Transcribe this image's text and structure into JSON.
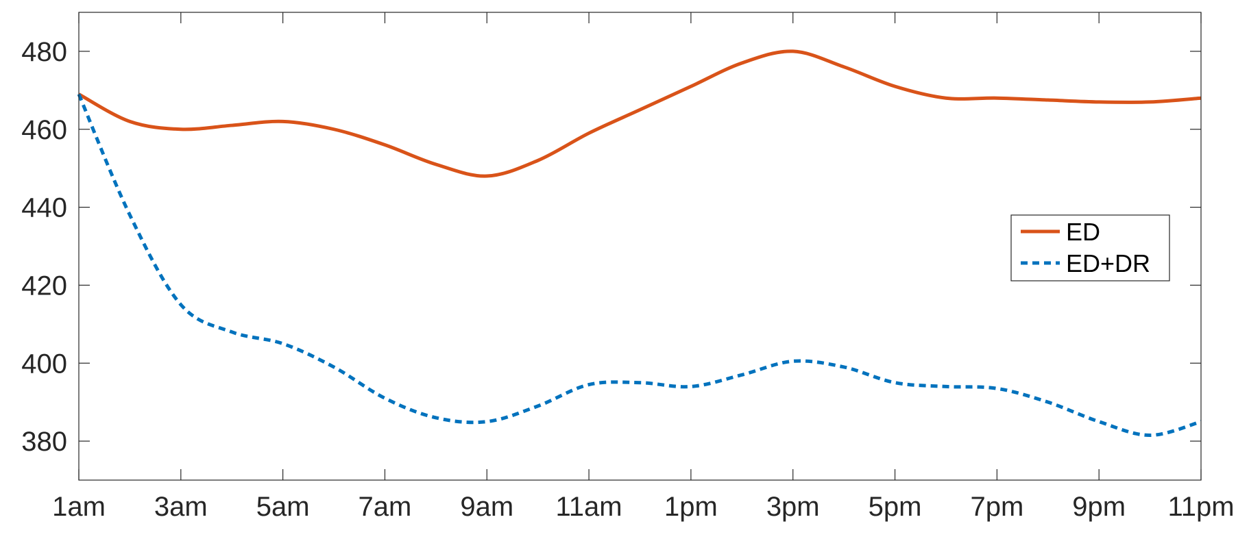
{
  "chart_data": {
    "type": "line",
    "title": "",
    "xlabel": "",
    "ylabel": "",
    "x": [
      1,
      2,
      3,
      4,
      5,
      6,
      7,
      8,
      9,
      10,
      11,
      12,
      13,
      14,
      15,
      16,
      17,
      18,
      19,
      20,
      21,
      22,
      23
    ],
    "xlim": [
      1,
      23
    ],
    "xticks": [
      1,
      3,
      5,
      7,
      9,
      11,
      13,
      15,
      17,
      19,
      21,
      23
    ],
    "xtick_labels": [
      "1am",
      "3am",
      "5am",
      "7am",
      "9am",
      "11am",
      "1pm",
      "3pm",
      "5pm",
      "7pm",
      "9pm",
      "11pm"
    ],
    "ylim": [
      370,
      490
    ],
    "yticks": [
      380,
      400,
      420,
      440,
      460,
      480
    ],
    "ytick_labels": [
      "380",
      "400",
      "420",
      "440",
      "460",
      "480"
    ],
    "grid": false,
    "legend_position": "right",
    "series": [
      {
        "name": "ED",
        "color": "#D95319",
        "style": "solid",
        "values": [
          469,
          462,
          460,
          461,
          462,
          460,
          456,
          451,
          448,
          452,
          459,
          465,
          471,
          477,
          480,
          476,
          471,
          468,
          468,
          467.5,
          467,
          467,
          468
        ]
      },
      {
        "name": "ED+DR",
        "color": "#0072BD",
        "style": "dashed",
        "values": [
          469,
          438,
          415,
          408,
          405,
          399,
          391,
          386,
          385,
          389,
          394.5,
          395,
          394,
          397,
          400.5,
          399,
          395,
          394,
          393.5,
          390,
          385,
          381.5,
          385
        ]
      }
    ]
  }
}
